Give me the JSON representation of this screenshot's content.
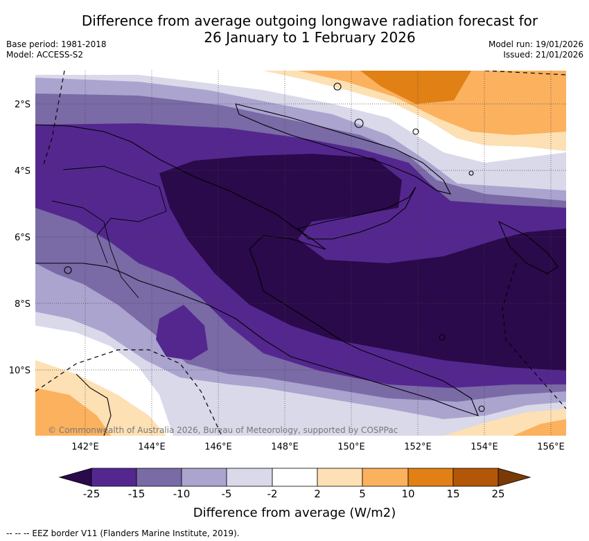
{
  "header": {
    "title_line1": "Difference from average outgoing longwave radiation forecast for",
    "title_line2": "26 January to 1 February 2026",
    "base_period": "Base period: 1981-2018",
    "model": "Model: ACCESS-S2",
    "model_run": "Model run: 19/01/2026",
    "issued": "Issued: 21/01/2026"
  },
  "map": {
    "lat_labels": [
      "2°S",
      "4°S",
      "6°S",
      "8°S",
      "10°S"
    ],
    "lon_labels": [
      "142°E",
      "144°E",
      "146°E",
      "148°E",
      "150°E",
      "152°E",
      "154°E",
      "156°E"
    ],
    "credit": "© Commonwealth of Australia 2026, Bureau of Meteorology, supported by COSPPac"
  },
  "colorbar": {
    "ticks": [
      "-25",
      "-15",
      "-10",
      "-5",
      "-2",
      "2",
      "5",
      "10",
      "15",
      "25"
    ],
    "colors": {
      "lt_minus25": "#2a0a4a",
      "m25_m15": "#54278f",
      "m15_m10": "#7a6aa6",
      "m10_m5": "#aaa4cf",
      "m5_m2": "#d9d9ea",
      "m2_p2": "#ffffff",
      "p2_p5": "#fde0b3",
      "p5_p10": "#fbb15e",
      "p10_p15": "#e08015",
      "p15_p25": "#b45608",
      "gt_25": "#7a3a05"
    },
    "label": "Difference from average (W/m2)"
  },
  "footer": {
    "eez_legend": "-- -- -- EEZ border V11 (Flanders Marine Institute, 2019)."
  }
}
